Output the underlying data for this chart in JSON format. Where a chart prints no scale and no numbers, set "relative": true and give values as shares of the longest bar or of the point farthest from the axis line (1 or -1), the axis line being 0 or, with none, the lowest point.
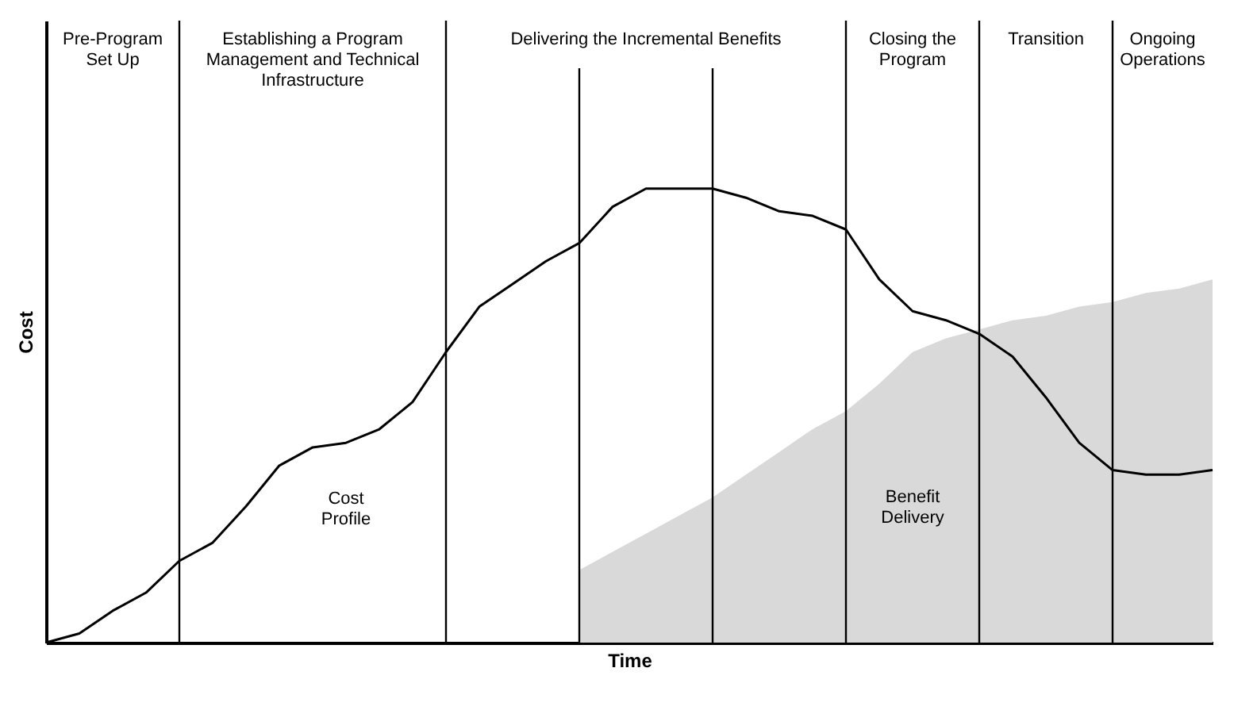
{
  "chart_data": {
    "type": "line",
    "relative": true,
    "xlabel": "Time",
    "ylabel": "Cost",
    "tick_labels": false,
    "grid": "x",
    "categories": [
      null,
      null,
      null,
      null,
      null,
      null,
      null,
      null,
      null,
      null,
      null,
      null,
      null,
      null,
      null,
      null,
      null,
      null,
      null,
      null,
      null,
      null,
      null,
      null,
      null,
      null,
      null,
      null,
      null,
      null,
      null,
      null,
      null,
      null,
      null,
      null
    ],
    "series": [
      {
        "name": "Benefit Delivery",
        "type": "area",
        "color": "#d9d9d9",
        "values": [
          null,
          null,
          null,
          null,
          null,
          null,
          null,
          null,
          null,
          null,
          null,
          null,
          null,
          null,
          null,
          null,
          0.16,
          0.2,
          0.24,
          0.28,
          0.32,
          0.37,
          0.42,
          0.47,
          0.51,
          0.57,
          0.64,
          0.67,
          0.69,
          0.71,
          0.72,
          0.74,
          0.75,
          0.77,
          0.78,
          0.8
        ]
      },
      {
        "name": "Cost Profile",
        "color": "#000000",
        "values": [
          0,
          0.02,
          0.07,
          0.11,
          0.18,
          0.22,
          0.3,
          0.39,
          0.43,
          0.44,
          0.47,
          0.53,
          0.64,
          0.74,
          0.79,
          0.84,
          0.88,
          0.96,
          1,
          1,
          1,
          0.98,
          0.95,
          0.94,
          0.91,
          0.8,
          0.73,
          0.71,
          0.68,
          0.63,
          0.54,
          0.44,
          0.38,
          0.37,
          0.37,
          0.38
        ]
      }
    ],
    "annotations": [
      "Pre-Program Set Up",
      "Establishing a Program Management and Technical Infrastructure",
      "Delivering the Incremental Benefits",
      "Closing the Program",
      "Transition",
      "Ongoing Operations"
    ]
  }
}
